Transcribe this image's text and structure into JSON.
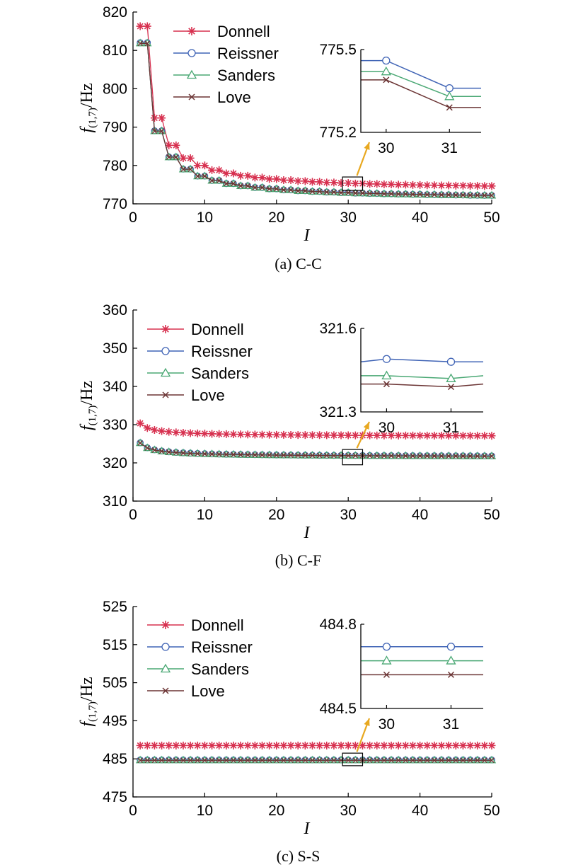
{
  "colors": {
    "Donnell": "#d7304f",
    "Reissner": "#3f63b5",
    "Sanders": "#4aa874",
    "Love": "#6b3434",
    "arrow": "#e8a820"
  },
  "chart_data": [
    {
      "type": "line",
      "caption": "(a) C-C",
      "ylabel_main": "f",
      "ylabel_sub": "(1,7)",
      "ylabel_unit": "/Hz",
      "xlabel": "I",
      "xlim": [
        0,
        50
      ],
      "ylim": [
        770,
        820
      ],
      "xticks": [
        0,
        10,
        20,
        30,
        40,
        50
      ],
      "yticks": [
        770,
        780,
        790,
        800,
        810,
        820
      ],
      "legend": [
        "Donnell",
        "Reissner",
        "Sanders",
        "Love"
      ],
      "series": [
        {
          "name": "Donnell",
          "marker": "star",
          "curve": "steps",
          "params": {
            "a": 773.7,
            "b": 40.3,
            "d": 1.2,
            "shift": 2.3
          }
        },
        {
          "name": "Reissner",
          "marker": "circle",
          "curve": "steps",
          "params": {
            "a": 771.35,
            "b": 40.65,
            "d": 1.2,
            "shift": 0
          }
        },
        {
          "name": "Sanders",
          "marker": "triangle",
          "curve": "steps",
          "params": {
            "a": 771.35,
            "b": 40.6,
            "d": 1.2,
            "shift": -0.05
          }
        },
        {
          "name": "Love",
          "marker": "x",
          "curve": "steps",
          "params": {
            "a": 771.35,
            "b": 40.55,
            "d": 1.2,
            "shift": -0.08
          }
        }
      ],
      "box": {
        "x1": 29.2,
        "x2": 32,
        "y1": 773.5,
        "y2": 777.0
      },
      "inset": {
        "xlim": [
          29.6,
          31.5
        ],
        "ylim": [
          775.2,
          775.5
        ],
        "xticks": [
          30,
          31
        ],
        "ytick_labels": [
          "775.2",
          "775.5"
        ],
        "series": [
          {
            "name": "Reissner",
            "values": [
              775.46,
              775.46,
              775.36,
              775.36
            ]
          },
          {
            "name": "Sanders",
            "values": [
              775.42,
              775.42,
              775.33,
              775.33
            ]
          },
          {
            "name": "Love",
            "values": [
              775.39,
              775.39,
              775.29,
              775.29
            ]
          }
        ]
      }
    },
    {
      "type": "line",
      "caption": "(b) C-F",
      "ylabel_main": "f",
      "ylabel_sub": "(1,7)",
      "ylabel_unit": "/Hz",
      "xlabel": "I",
      "xlim": [
        0,
        50
      ],
      "ylim": [
        310,
        360
      ],
      "xticks": [
        0,
        10,
        20,
        30,
        40,
        50
      ],
      "yticks": [
        310,
        320,
        330,
        340,
        350,
        360
      ],
      "legend": [
        "Donnell",
        "Reissner",
        "Sanders",
        "Love"
      ],
      "series": [
        {
          "name": "Donnell",
          "marker": "star",
          "curve": "decay",
          "params": {
            "a": 326.75,
            "b": 3.6,
            "d": 0.6
          }
        },
        {
          "name": "Reissner",
          "marker": "circle",
          "curve": "decay",
          "params": {
            "a": 321.45,
            "b": 3.8,
            "d": 0.6
          }
        },
        {
          "name": "Sanders",
          "marker": "triangle",
          "curve": "decay",
          "params": {
            "a": 321.42,
            "b": 3.8,
            "d": 0.6
          }
        },
        {
          "name": "Love",
          "marker": "x",
          "curve": "decay",
          "params": {
            "a": 321.39,
            "b": 3.8,
            "d": 0.6
          }
        }
      ],
      "box": {
        "x1": 29.2,
        "x2": 32,
        "y1": 319.5,
        "y2": 323.5
      },
      "inset": {
        "xlim": [
          29.6,
          31.5
        ],
        "ylim": [
          321.3,
          321.6
        ],
        "xticks": [
          30,
          31
        ],
        "ytick_labels": [
          "321.6",
          "321.3"
        ],
        "series": [
          {
            "name": "Reissner",
            "values": [
              321.48,
              321.49,
              321.48,
              321.48
            ]
          },
          {
            "name": "Sanders",
            "values": [
              321.43,
              321.43,
              321.42,
              321.43
            ]
          },
          {
            "name": "Love",
            "values": [
              321.4,
              321.4,
              321.39,
              321.4
            ]
          }
        ]
      }
    },
    {
      "type": "line",
      "caption": "(c) S-S",
      "ylabel_main": "f",
      "ylabel_sub": "(1,7)",
      "ylabel_unit": "/Hz",
      "xlabel": "I",
      "xlim": [
        0,
        50
      ],
      "ylim": [
        475,
        525
      ],
      "xticks": [
        0,
        10,
        20,
        30,
        40,
        50
      ],
      "yticks": [
        475,
        485,
        495,
        505,
        515,
        525
      ],
      "legend": [
        "Donnell",
        "Reissner",
        "Sanders",
        "Love"
      ],
      "series": [
        {
          "name": "Donnell",
          "marker": "star",
          "curve": "flat",
          "params": {
            "a": 488.5
          }
        },
        {
          "name": "Reissner",
          "marker": "circle",
          "curve": "flat",
          "params": {
            "a": 484.72
          }
        },
        {
          "name": "Sanders",
          "marker": "triangle",
          "curve": "flat",
          "params": {
            "a": 484.67
          }
        },
        {
          "name": "Love",
          "marker": "x",
          "curve": "flat",
          "params": {
            "a": 484.62
          }
        }
      ],
      "box": {
        "x1": 29.2,
        "x2": 32,
        "y1": 483.2,
        "y2": 486.5
      },
      "inset": {
        "xlim": [
          29.6,
          31.5
        ],
        "ylim": [
          484.5,
          484.8
        ],
        "xticks": [
          30,
          31
        ],
        "ytick_labels": [
          "484.8",
          "484.5"
        ],
        "series": [
          {
            "name": "Reissner",
            "values": [
              484.72,
              484.72,
              484.72,
              484.72
            ]
          },
          {
            "name": "Sanders",
            "values": [
              484.67,
              484.67,
              484.67,
              484.67
            ]
          },
          {
            "name": "Love",
            "values": [
              484.62,
              484.62,
              484.62,
              484.62
            ]
          }
        ]
      }
    }
  ]
}
